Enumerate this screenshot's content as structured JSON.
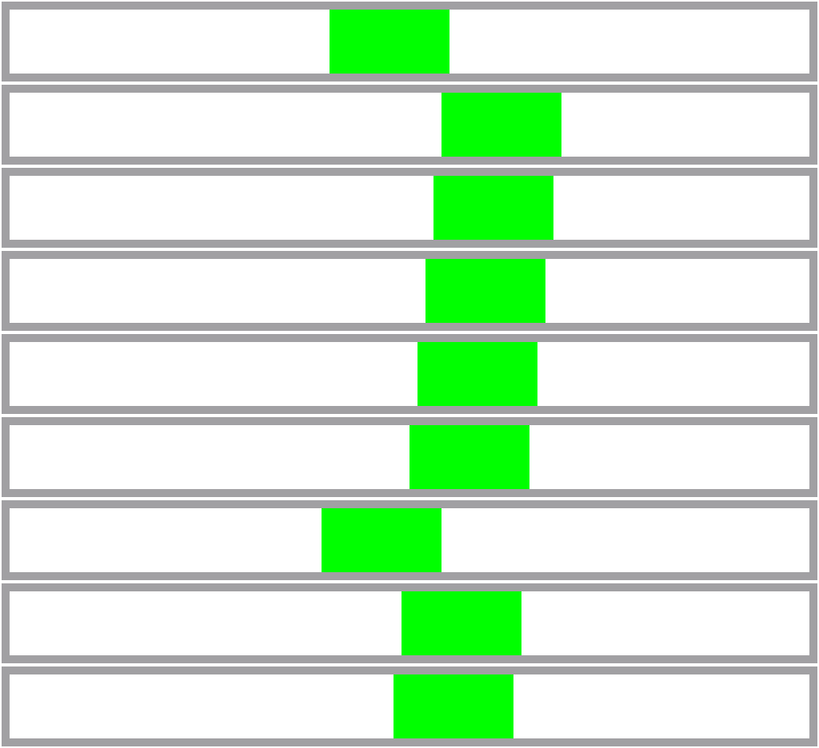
{
  "colors": {
    "track_border": "#a1a0a3",
    "track_fill": "#ffffff",
    "block": "#00ff00"
  },
  "track_range": [
    0,
    1000
  ],
  "block_span": 150,
  "rows": [
    {
      "block_start": 400
    },
    {
      "block_start": 540
    },
    {
      "block_start": 530
    },
    {
      "block_start": 520
    },
    {
      "block_start": 510
    },
    {
      "block_start": 500
    },
    {
      "block_start": 390
    },
    {
      "block_start": 490
    },
    {
      "block_start": 480
    }
  ]
}
